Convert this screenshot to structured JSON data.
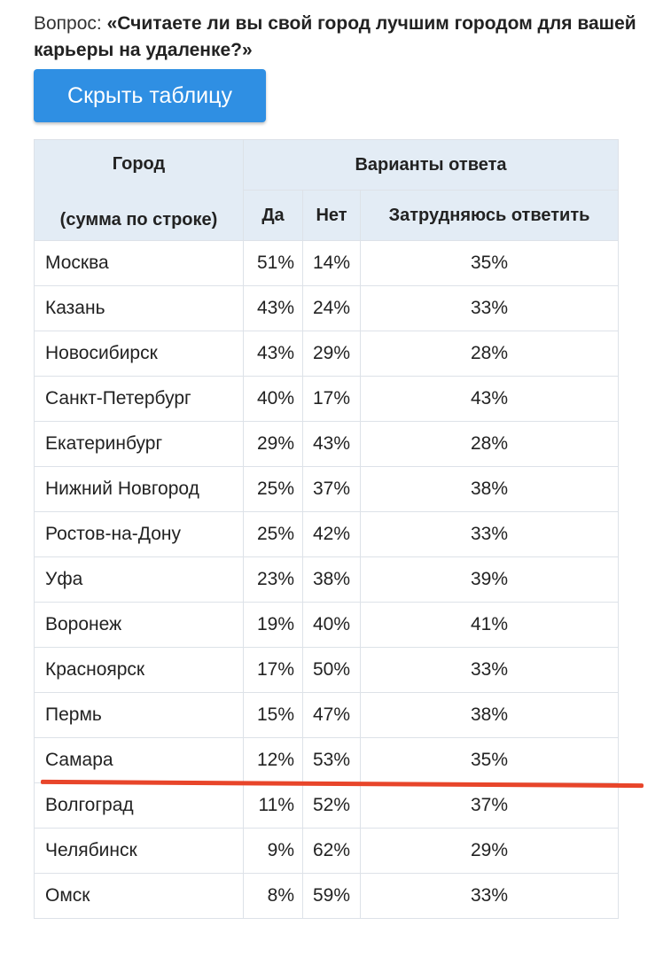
{
  "question": {
    "prefix": "Вопрос: ",
    "text": "«Считаете ли вы свой город лучшим городом для вашей карьеры на удаленке?»"
  },
  "hide_button_label": "Скрыть таблицу",
  "table": {
    "header_city": "Город",
    "header_city_sub": "(сумма по строке)",
    "header_answers": "Варианты ответа",
    "header_yes": "Да",
    "header_no": "Нет",
    "header_hard": "Затрудняюсь ответить",
    "rows": [
      {
        "city": "Москва",
        "yes": "51%",
        "no": "14%",
        "hard": "35%"
      },
      {
        "city": "Казань",
        "yes": "43%",
        "no": "24%",
        "hard": "33%"
      },
      {
        "city": "Новосибирск",
        "yes": "43%",
        "no": "29%",
        "hard": "28%"
      },
      {
        "city": "Санкт-Петербург",
        "yes": "40%",
        "no": "17%",
        "hard": "43%"
      },
      {
        "city": "Екатеринбург",
        "yes": "29%",
        "no": "43%",
        "hard": "28%"
      },
      {
        "city": "Нижний Новгород",
        "yes": "25%",
        "no": "37%",
        "hard": "38%"
      },
      {
        "city": "Ростов-на-Дону",
        "yes": "25%",
        "no": "42%",
        "hard": "33%"
      },
      {
        "city": "Уфа",
        "yes": "23%",
        "no": "38%",
        "hard": "39%"
      },
      {
        "city": "Воронеж",
        "yes": "19%",
        "no": "40%",
        "hard": "41%"
      },
      {
        "city": "Красноярск",
        "yes": "17%",
        "no": "50%",
        "hard": "33%"
      },
      {
        "city": "Пермь",
        "yes": "15%",
        "no": "47%",
        "hard": "38%"
      },
      {
        "city": "Самара",
        "yes": "12%",
        "no": "53%",
        "hard": "35%"
      },
      {
        "city": "Волгоград",
        "yes": "11%",
        "no": "52%",
        "hard": "37%"
      },
      {
        "city": "Челябинск",
        "yes": "9%",
        "no": "62%",
        "hard": "29%"
      },
      {
        "city": "Омск",
        "yes": "8%",
        "no": "59%",
        "hard": "33%"
      }
    ]
  },
  "colors": {
    "button": "#2f8fe3",
    "header_bg": "#e3ecf5",
    "underline": "#e8452a"
  }
}
